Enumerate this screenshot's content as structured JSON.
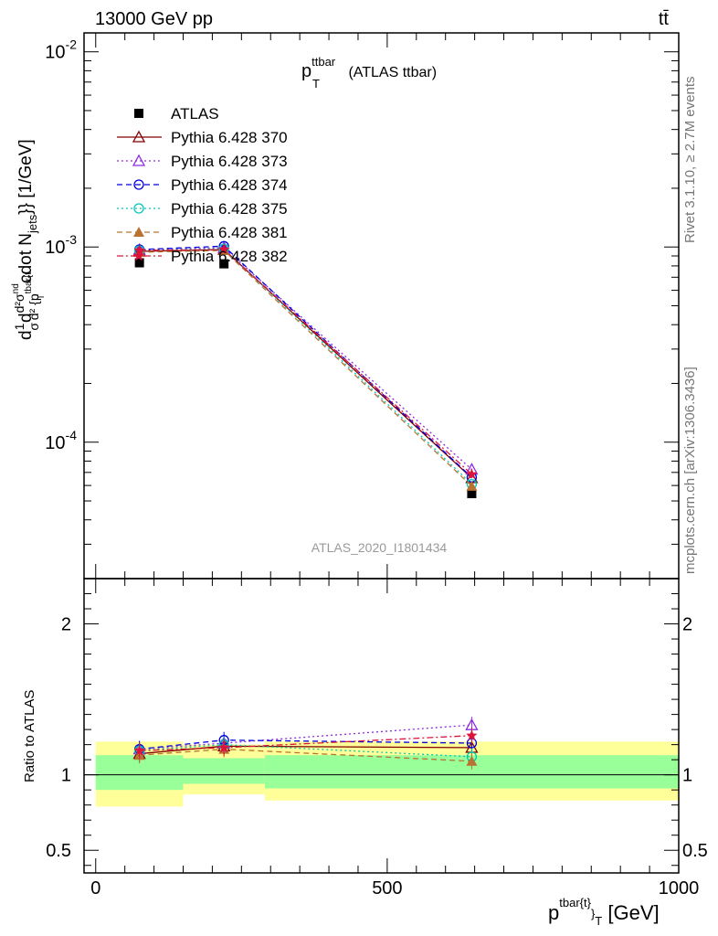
{
  "header": {
    "energy": "13000 GeV pp",
    "process": "tt̄",
    "rivet": "Rivet 3.1.10, ≥ 2.7M events",
    "mcplots": "mcplots.cern.ch [arXiv:1306.3436]",
    "analysis": "ATLAS_2020_I1801434"
  },
  "chart_data": [
    {
      "panel": "main",
      "type": "line",
      "title": "p_T^ttbar (ATLAS ttbar)",
      "title_main": "p",
      "title_sup": "ttbar",
      "title_sub": "T",
      "title_rest": " (ATLAS ttbar)",
      "ylabel": "d\\frac{1}{\\sigma}d\\frac{d^{2}\\sigma^{nd}}{d^{2} {p_{T}^{tbar{t}}} cdot N_{jets}}} [1/GeV]",
      "ylabel_parts": [
        "d",
        "1",
        "σ",
        "d",
        "d²σ",
        "nd",
        "d² {p",
        "tbar{t",
        "T",
        "cdot N",
        "jets",
        "}} [1/GeV]"
      ],
      "yscale": "log",
      "ylim": [
        2e-05,
        0.0125
      ],
      "xlim": [
        -20,
        1000
      ],
      "ytick_labels": [
        "10^-4",
        "10^-3",
        "10^-2"
      ],
      "x": [
        75,
        220,
        645
      ],
      "series": [
        {
          "name": "ATLAS",
          "color": "#000000",
          "marker": "square-filled",
          "line": "none",
          "values": [
            0.00083,
            0.00082,
            5.45e-05
          ]
        },
        {
          "name": "Pythia 6.428 370",
          "color": "#800000",
          "marker": "triangle-open",
          "line": "solid",
          "values": [
            0.00095,
            0.00097,
            6.55e-05
          ]
        },
        {
          "name": "Pythia 6.428 373",
          "color": "#8a2be2",
          "marker": "triangle-open",
          "line": "dotted",
          "values": [
            0.00097,
            0.00099,
            7.25e-05
          ]
        },
        {
          "name": "Pythia 6.428 374",
          "color": "#0000dd",
          "marker": "circle-open",
          "line": "dashed",
          "values": [
            0.00097,
            0.00101,
            6.6e-05
          ]
        },
        {
          "name": "Pythia 6.428 375",
          "color": "#00c8b4",
          "marker": "circle-open",
          "line": "dotted",
          "values": [
            0.00096,
            0.00098,
            6.1e-05
          ]
        },
        {
          "name": "Pythia 6.428 381",
          "color": "#b87333",
          "marker": "triangle-filled",
          "line": "dashed",
          "values": [
            0.00094,
            0.00096,
            5.95e-05
          ]
        },
        {
          "name": "Pythia 6.428 382",
          "color": "#dc143c",
          "marker": "star-filled",
          "line": "dashdot",
          "values": [
            0.00096,
            0.00097,
            6.85e-05
          ]
        }
      ]
    },
    {
      "panel": "ratio",
      "type": "line",
      "ylabel": "Ratio to ATLAS",
      "ylim": [
        0.35,
        2.3
      ],
      "ytick_labels": [
        "0.5",
        "1",
        "2"
      ],
      "xlabel": "p_T^{tbar{t}} [GeV]",
      "xlabel_main": "p",
      "xlabel_sup": "tbar{t}",
      "xlabel_sub": "}",
      "xlabel_subsub": "T",
      "xlabel_rest": " [GeV]",
      "xtick_labels": [
        "0",
        "500",
        "1000"
      ],
      "bands": [
        {
          "x": [
            0,
            150
          ],
          "inner": [
            0.9,
            1.13
          ],
          "outer": [
            0.79,
            1.22
          ]
        },
        {
          "x": [
            150,
            290
          ],
          "inner": [
            0.94,
            1.11
          ],
          "outer": [
            0.87,
            1.2
          ]
        },
        {
          "x": [
            290,
            1000
          ],
          "inner": [
            0.91,
            1.13
          ],
          "outer": [
            0.83,
            1.22
          ]
        }
      ],
      "x": [
        75,
        220,
        645
      ],
      "series": [
        {
          "name": "Pythia 6.428 370",
          "values": [
            1.14,
            1.19,
            1.18
          ]
        },
        {
          "name": "Pythia 6.428 373",
          "values": [
            1.17,
            1.21,
            1.33
          ]
        },
        {
          "name": "Pythia 6.428 374",
          "values": [
            1.17,
            1.23,
            1.21
          ]
        },
        {
          "name": "Pythia 6.428 375",
          "values": [
            1.16,
            1.2,
            1.12
          ]
        },
        {
          "name": "Pythia 6.428 381",
          "values": [
            1.13,
            1.17,
            1.09
          ]
        },
        {
          "name": "Pythia 6.428 382",
          "values": [
            1.16,
            1.18,
            1.26
          ]
        }
      ]
    }
  ]
}
